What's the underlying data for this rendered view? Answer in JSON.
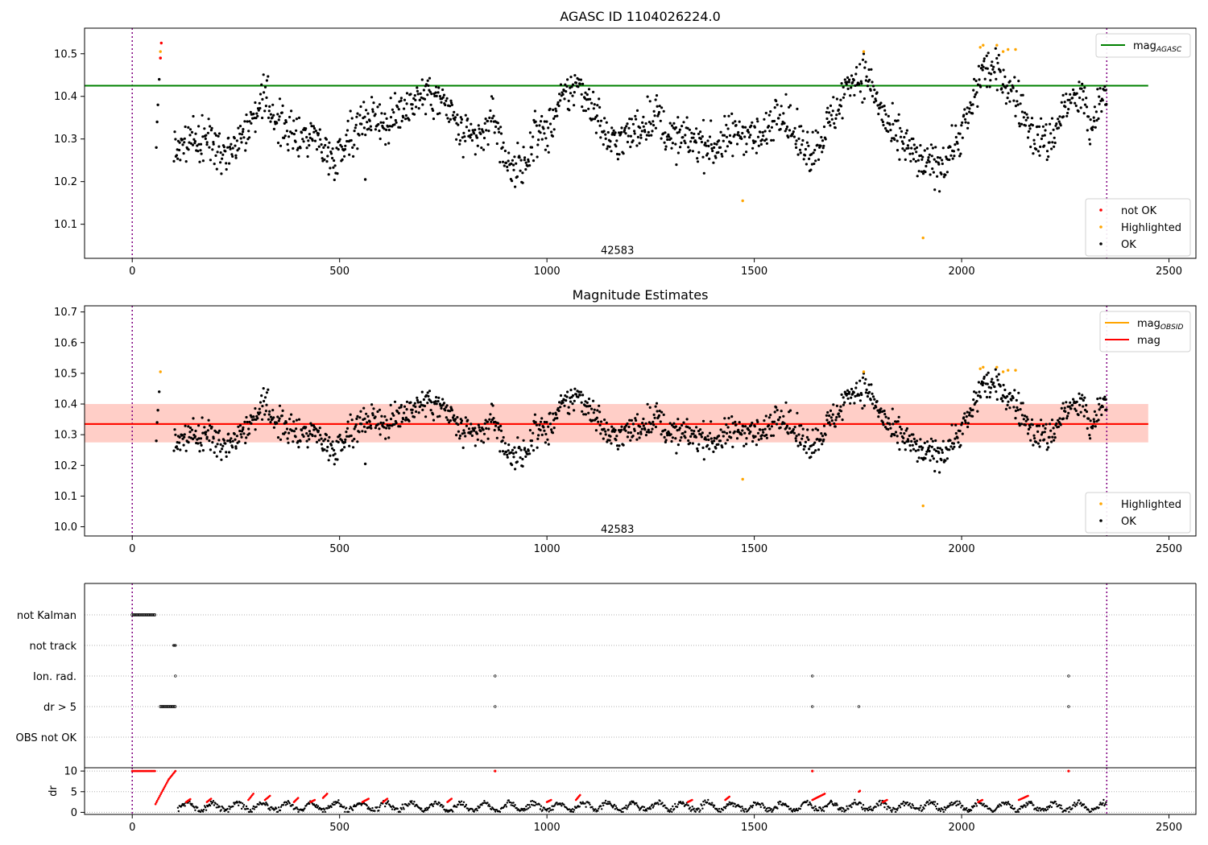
{
  "chart_data": [
    {
      "type": "scatter",
      "title": "AGASC ID 1104026224.0",
      "xlim": [
        -115,
        2565
      ],
      "ylim": [
        10.02,
        10.56
      ],
      "yticks": [
        10.1,
        10.2,
        10.3,
        10.4,
        10.5
      ],
      "xticks": [
        0,
        500,
        1000,
        1500,
        2000,
        2500
      ],
      "vlines": [
        0,
        2350
      ],
      "obsid_label": "42583",
      "obsid_label_pos": [
        1170,
        10.03
      ],
      "reference_lines": [
        {
          "name": "mag_AGASC",
          "value": 10.425,
          "x_range": [
            -115,
            2450
          ],
          "color": "#008000"
        }
      ],
      "legends": [
        {
          "placement": "top-right",
          "entries": [
            {
              "label": "mag",
              "sub": "AGASC",
              "kind": "line",
              "color": "#008000"
            }
          ]
        },
        {
          "placement": "bottom-right",
          "entries": [
            {
              "label": "not OK",
              "kind": "marker",
              "color": "#ff0000"
            },
            {
              "label": "Highlighted",
              "kind": "marker",
              "color": "#ffa500"
            },
            {
              "label": "OK",
              "kind": "marker",
              "color": "#000000"
            }
          ]
        }
      ],
      "series": [
        {
          "name": "not OK",
          "color": "#ff0000",
          "x": [
            68,
            68,
            70
          ],
          "y": [
            10.49,
            10.49,
            10.525
          ]
        },
        {
          "name": "Highlighted",
          "color": "#ffa500",
          "x": [
            68,
            1472,
            1764,
            1907,
            2045,
            2052,
            2085,
            2100,
            2112,
            2130
          ],
          "y": [
            10.505,
            10.155,
            10.505,
            10.068,
            10.515,
            10.52,
            10.52,
            10.505,
            10.51,
            10.51
          ]
        },
        {
          "name": "OK",
          "color": "#000000",
          "x": [
            58,
            60,
            62,
            65,
            562
          ],
          "y": [
            10.28,
            10.34,
            10.38,
            10.44,
            10.205
          ]
        }
      ],
      "ok_band": {
        "x_range": [
          100,
          2350
        ],
        "center_knots": [
          [
            100,
            10.28
          ],
          [
            180,
            10.3
          ],
          [
            230,
            10.27
          ],
          [
            280,
            10.34
          ],
          [
            320,
            10.39
          ],
          [
            380,
            10.31
          ],
          [
            440,
            10.31
          ],
          [
            480,
            10.25
          ],
          [
            530,
            10.32
          ],
          [
            580,
            10.36
          ],
          [
            620,
            10.33
          ],
          [
            660,
            10.38
          ],
          [
            720,
            10.41
          ],
          [
            760,
            10.37
          ],
          [
            800,
            10.3
          ],
          [
            840,
            10.3
          ],
          [
            870,
            10.36
          ],
          [
            900,
            10.25
          ],
          [
            940,
            10.22
          ],
          [
            970,
            10.32
          ],
          [
            1000,
            10.31
          ],
          [
            1030,
            10.38
          ],
          [
            1070,
            10.43
          ],
          [
            1110,
            10.38
          ],
          [
            1150,
            10.29
          ],
          [
            1200,
            10.31
          ],
          [
            1260,
            10.36
          ],
          [
            1300,
            10.3
          ],
          [
            1350,
            10.3
          ],
          [
            1400,
            10.28
          ],
          [
            1450,
            10.31
          ],
          [
            1480,
            10.32
          ],
          [
            1520,
            10.3
          ],
          [
            1560,
            10.38
          ],
          [
            1600,
            10.3
          ],
          [
            1640,
            10.27
          ],
          [
            1700,
            10.37
          ],
          [
            1730,
            10.44
          ],
          [
            1770,
            10.45
          ],
          [
            1800,
            10.38
          ],
          [
            1830,
            10.31
          ],
          [
            1870,
            10.28
          ],
          [
            1900,
            10.24
          ],
          [
            1950,
            10.24
          ],
          [
            1990,
            10.3
          ],
          [
            2020,
            10.36
          ],
          [
            2050,
            10.47
          ],
          [
            2090,
            10.45
          ],
          [
            2130,
            10.4
          ],
          [
            2170,
            10.31
          ],
          [
            2210,
            10.29
          ],
          [
            2250,
            10.38
          ],
          [
            2290,
            10.4
          ],
          [
            2310,
            10.32
          ],
          [
            2350,
            10.42
          ]
        ],
        "spread": 0.025
      }
    },
    {
      "type": "scatter",
      "title": "Magnitude Estimates",
      "xlim": [
        -115,
        2565
      ],
      "ylim": [
        9.97,
        10.72
      ],
      "yticks": [
        10.0,
        10.1,
        10.2,
        10.3,
        10.4,
        10.5,
        10.6,
        10.7
      ],
      "xticks": [
        0,
        500,
        1000,
        1500,
        2000,
        2500
      ],
      "vlines": [
        0,
        2350
      ],
      "obsid_label": "42583",
      "obsid_label_pos": [
        1170,
        9.98
      ],
      "reference_lines": [
        {
          "name": "mag_OBSID",
          "value": 10.335,
          "x_range": [
            -115,
            2450
          ],
          "color": "#ffa500"
        },
        {
          "name": "mag",
          "value": 10.335,
          "x_range": [
            -115,
            2450
          ],
          "color": "#ff0000"
        }
      ],
      "bands": [
        {
          "x_range": [
            -115,
            2450
          ],
          "y_range": [
            10.275,
            10.4
          ],
          "color": "#ffc0cb",
          "opacity": 0.45
        },
        {
          "x_range": [
            -115,
            2450
          ],
          "y_range": [
            10.275,
            10.4
          ],
          "color": "#ffa07a",
          "opacity": 0.3
        }
      ],
      "legends": [
        {
          "placement": "top-right",
          "entries": [
            {
              "label": "mag",
              "sub": "OBSID",
              "kind": "line",
              "color": "#ffa500"
            },
            {
              "label": "mag",
              "kind": "line",
              "color": "#ff0000"
            }
          ]
        },
        {
          "placement": "bottom-right",
          "entries": [
            {
              "label": "Highlighted",
              "kind": "marker",
              "color": "#ffa500"
            },
            {
              "label": "OK",
              "kind": "marker",
              "color": "#000000"
            }
          ]
        }
      ],
      "series": [
        {
          "name": "Highlighted",
          "color": "#ffa500",
          "x": [
            68,
            1472,
            1764,
            1907,
            2045,
            2052,
            2085,
            2100,
            2112,
            2130
          ],
          "y": [
            10.505,
            10.155,
            10.505,
            10.068,
            10.515,
            10.52,
            10.52,
            10.505,
            10.51,
            10.51
          ]
        },
        {
          "name": "OK",
          "color": "#000000",
          "x": [
            58,
            60,
            62,
            65,
            562
          ],
          "y": [
            10.28,
            10.34,
            10.38,
            10.44,
            10.205
          ]
        }
      ],
      "ok_band_from": 0
    },
    {
      "type": "scatter",
      "title": "",
      "xlim": [
        -115,
        2565
      ],
      "categories": [
        "not Kalman",
        "not track",
        "Ion. rad.",
        "dr > 5",
        "OBS not OK"
      ],
      "vlines": [
        0,
        2350
      ],
      "flags": [
        {
          "category": "not Kalman",
          "x_range": [
            0,
            55
          ]
        },
        {
          "category": "not track",
          "x": [
            100,
            102,
            104
          ]
        },
        {
          "category": "Ion. rad.",
          "x": [
            104,
            875,
            1640,
            2258
          ]
        },
        {
          "category": "dr > 5",
          "x_range": [
            68,
            104
          ],
          "x": [
            875,
            1640,
            1752,
            2258
          ]
        }
      ]
    },
    {
      "type": "scatter",
      "title": "",
      "ylabel": "dr",
      "xlim": [
        -115,
        2565
      ],
      "ylim": [
        -0.5,
        10.8
      ],
      "yticks": [
        0,
        5,
        10
      ],
      "xticks": [
        0,
        500,
        1000,
        1500,
        2000,
        2500
      ],
      "vlines": [
        0,
        2350
      ],
      "red_segments": [
        [
          0,
          55,
          10,
          10
        ],
        [
          56,
          88,
          2,
          8
        ],
        [
          88,
          104,
          8,
          10
        ],
        [
          130,
          140,
          2.5,
          3.2
        ],
        [
          180,
          190,
          2.5,
          3.3
        ],
        [
          280,
          292,
          3,
          4.5
        ],
        [
          320,
          332,
          3,
          4
        ],
        [
          390,
          400,
          2.5,
          3.5
        ],
        [
          430,
          440,
          2.5,
          3.0
        ],
        [
          460,
          470,
          3.5,
          4.5
        ],
        [
          555,
          570,
          2.5,
          3.3
        ],
        [
          605,
          615,
          2.5,
          3.3
        ],
        [
          760,
          770,
          2.5,
          3.3
        ],
        [
          1000,
          1010,
          2.5,
          3.0
        ],
        [
          1070,
          1080,
          3,
          4.2
        ],
        [
          1340,
          1350,
          2.5,
          3.0
        ],
        [
          1430,
          1440,
          3,
          3.8
        ],
        [
          1640,
          1670,
          3,
          4.5
        ],
        [
          1752,
          1755,
          5,
          5.2
        ],
        [
          1810,
          1820,
          2.5,
          3.0
        ],
        [
          2040,
          2050,
          2.5,
          3.0
        ],
        [
          2138,
          2160,
          3,
          4.0
        ]
      ],
      "red_points": [
        [
          875,
          10
        ],
        [
          1640,
          10
        ],
        [
          2258,
          10
        ]
      ]
    }
  ]
}
